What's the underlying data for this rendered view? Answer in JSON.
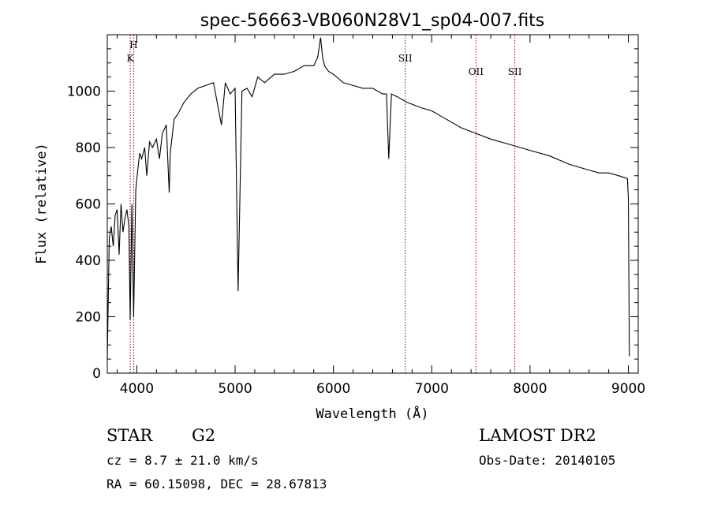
{
  "chart_data": {
    "type": "line",
    "title": "spec-56663-VB060N28V1_sp04-007.fits",
    "xlabel": "Wavelength (Å)",
    "ylabel": "Flux (relative)",
    "xlim": [
      3700,
      9100
    ],
    "ylim": [
      0,
      1200
    ],
    "xticks": [
      4000,
      5000,
      6000,
      7000,
      8000,
      9000
    ],
    "yticks": [
      0,
      200,
      400,
      600,
      800,
      1000
    ],
    "grid": false,
    "series": [
      {
        "x": [
          3700,
          3720,
          3740,
          3760,
          3780,
          3800,
          3820,
          3840,
          3860,
          3880,
          3900,
          3920,
          3933,
          3950,
          3968,
          3990,
          4010,
          4030,
          4050,
          4080,
          4101,
          4130,
          4160,
          4200,
          4230,
          4260,
          4300,
          4330,
          4340,
          4380,
          4420,
          4480,
          4550,
          4620,
          4700,
          4780,
          4861,
          4900,
          4950,
          5000,
          5030,
          5070,
          5120,
          5173,
          5230,
          5300,
          5400,
          5500,
          5600,
          5700,
          5800,
          5840,
          5870,
          5890,
          5910,
          5950,
          6000,
          6100,
          6200,
          6300,
          6400,
          6500,
          6540,
          6563,
          6590,
          6650,
          6750,
          6900,
          7000,
          7100,
          7200,
          7300,
          7450,
          7600,
          7800,
          8000,
          8200,
          8400,
          8500,
          8600,
          8700,
          8800,
          8900,
          8990,
          9000,
          9010
        ],
        "y": [
          50,
          480,
          520,
          450,
          560,
          580,
          420,
          600,
          500,
          550,
          580,
          520,
          190,
          600,
          200,
          650,
          720,
          780,
          760,
          800,
          700,
          820,
          800,
          830,
          760,
          850,
          880,
          640,
          780,
          900,
          920,
          960,
          990,
          1010,
          1020,
          1030,
          880,
          1030,
          990,
          1010,
          290,
          1000,
          1010,
          980,
          1050,
          1030,
          1060,
          1060,
          1070,
          1090,
          1090,
          1120,
          1190,
          1120,
          1090,
          1070,
          1060,
          1030,
          1020,
          1010,
          1010,
          990,
          990,
          760,
          990,
          980,
          960,
          940,
          930,
          910,
          890,
          870,
          850,
          830,
          810,
          790,
          770,
          740,
          730,
          720,
          710,
          710,
          700,
          690,
          620,
          60
        ]
      }
    ],
    "line_markers": [
      {
        "label": "H",
        "x": 3968,
        "label_row": 0
      },
      {
        "label": "K",
        "x": 3933,
        "label_row": 1
      },
      {
        "label": "SII",
        "x": 6731,
        "label_row": 1
      },
      {
        "label": "OII",
        "x": 7450,
        "label_row": 2
      },
      {
        "label": "SII",
        "x": 7845,
        "label_row": 2
      }
    ],
    "colors": {
      "spectrum": "#000000",
      "markers": "#a00000",
      "axes": "#000000"
    }
  },
  "info": {
    "object_class": "STAR",
    "subclass": "G2",
    "survey": "LAMOST DR2",
    "redshift": "cz = 8.7 ± 21.0 km/s",
    "obs_date": "Obs-Date: 20140105",
    "coords": "RA =  60.15098, DEC =  28.67813"
  }
}
